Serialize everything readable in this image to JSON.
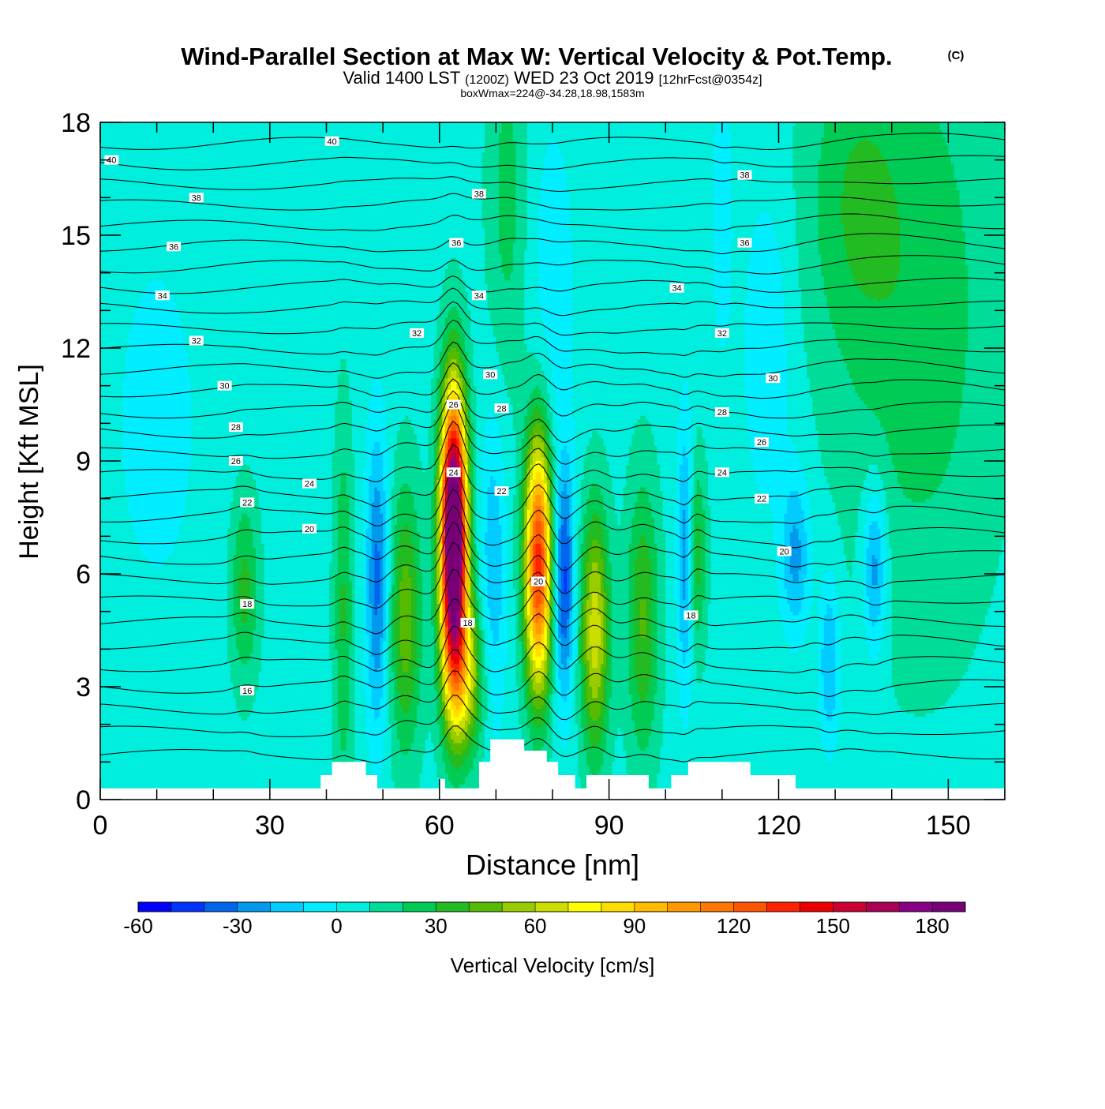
{
  "header": {
    "title": "Wind-Parallel Section at Max W: Vertical Velocity & Pot.Temp.",
    "copyright": "(C)",
    "valid_prefix": "Valid 1400 LST",
    "valid_utc": "(1200Z)",
    "valid_date": "WED 23 Oct 2019",
    "forecast": "[12hrFcst@0354z]",
    "box_info": "boxWmax=224@-34.28,18.98,1583m"
  },
  "chart_data": {
    "type": "heatmap",
    "xlabel": "Distance [nm]",
    "ylabel": "Height [Kft MSL]",
    "xlim": [
      0,
      160
    ],
    "ylim": [
      0,
      18
    ],
    "xticks": [
      "0",
      "30",
      "60",
      "90",
      "120",
      "150"
    ],
    "xtick_values": [
      0,
      30,
      60,
      90,
      120,
      150
    ],
    "yticks": [
      "0",
      "3",
      "6",
      "9",
      "12",
      "15",
      "18"
    ],
    "ytick_values": [
      0,
      3,
      6,
      9,
      12,
      15,
      18
    ],
    "terrain_kft": [
      {
        "x": 0,
        "h": 0.3
      },
      {
        "x": 39,
        "h": 0.3
      },
      {
        "x": 39,
        "h": 0.65
      },
      {
        "x": 41,
        "h": 0.65
      },
      {
        "x": 41,
        "h": 1.0
      },
      {
        "x": 47,
        "h": 1.0
      },
      {
        "x": 47,
        "h": 0.65
      },
      {
        "x": 49,
        "h": 0.65
      },
      {
        "x": 49,
        "h": 0.3
      },
      {
        "x": 60,
        "h": 0.3
      },
      {
        "x": 60,
        "h": 0.55
      },
      {
        "x": 61,
        "h": 0.55
      },
      {
        "x": 61,
        "h": 0.3
      },
      {
        "x": 67,
        "h": 0.3
      },
      {
        "x": 67,
        "h": 1.0
      },
      {
        "x": 69,
        "h": 1.0
      },
      {
        "x": 69,
        "h": 1.6
      },
      {
        "x": 75,
        "h": 1.6
      },
      {
        "x": 75,
        "h": 1.3
      },
      {
        "x": 79,
        "h": 1.3
      },
      {
        "x": 79,
        "h": 1.0
      },
      {
        "x": 81,
        "h": 1.0
      },
      {
        "x": 81,
        "h": 0.65
      },
      {
        "x": 84,
        "h": 0.65
      },
      {
        "x": 84,
        "h": 0.3
      },
      {
        "x": 86,
        "h": 0.3
      },
      {
        "x": 86,
        "h": 0.65
      },
      {
        "x": 97,
        "h": 0.65
      },
      {
        "x": 97,
        "h": 0.3
      },
      {
        "x": 101,
        "h": 0.3
      },
      {
        "x": 101,
        "h": 0.65
      },
      {
        "x": 104,
        "h": 0.65
      },
      {
        "x": 104,
        "h": 1.0
      },
      {
        "x": 115,
        "h": 1.0
      },
      {
        "x": 115,
        "h": 0.65
      },
      {
        "x": 123,
        "h": 0.65
      },
      {
        "x": 123,
        "h": 0.3
      },
      {
        "x": 160,
        "h": 0.3
      }
    ],
    "updrafts": [
      {
        "x": 62.5,
        "z": 7.0,
        "peak": 224,
        "wx": 1.6,
        "wz": 2.6
      },
      {
        "x": 77.5,
        "z": 6.3,
        "peak": 130,
        "wx": 1.7,
        "wz": 2.4
      },
      {
        "x": 87.5,
        "z": 4.5,
        "peak": 60,
        "wx": 1.8,
        "wz": 2.3
      },
      {
        "x": 54.0,
        "z": 4.8,
        "peak": 40,
        "wx": 2.0,
        "wz": 2.5
      },
      {
        "x": 96.0,
        "z": 4.8,
        "peak": 35,
        "wx": 2.0,
        "wz": 2.6
      },
      {
        "x": 64.5,
        "z": 3.3,
        "peak": 55,
        "wx": 2.4,
        "wz": 1.5
      },
      {
        "x": 25.5,
        "z": 5.6,
        "peak": 28,
        "wx": 1.8,
        "wz": 1.8
      },
      {
        "x": 105.5,
        "z": 6.5,
        "peak": 30,
        "wx": 1.2,
        "wz": 1.8
      },
      {
        "x": 43.0,
        "z": 5.0,
        "peak": 25,
        "wx": 1.2,
        "wz": 3.5
      },
      {
        "x": 145.0,
        "z": 13.0,
        "peak": 20,
        "wx": 10.0,
        "wz": 6.0
      },
      {
        "x": 133.0,
        "z": 16.0,
        "peak": 18,
        "wx": 6.0,
        "wz": 3.0
      },
      {
        "x": 72.0,
        "z": 16.0,
        "peak": 18,
        "wx": 2.5,
        "wz": 3.5
      }
    ],
    "downdrafts": [
      {
        "x": 49.0,
        "z": 5.8,
        "peak": -40,
        "wx": 1.4,
        "wz": 2.8
      },
      {
        "x": 82.0,
        "z": 5.8,
        "peak": -50,
        "wx": 1.3,
        "wz": 2.2
      },
      {
        "x": 69.5,
        "z": 6.0,
        "peak": -25,
        "wx": 1.6,
        "wz": 3.0
      },
      {
        "x": 103.5,
        "z": 6.5,
        "peak": -35,
        "wx": 1.0,
        "wz": 2.5
      },
      {
        "x": 123.0,
        "z": 6.5,
        "peak": -30,
        "wx": 1.8,
        "wz": 1.5
      },
      {
        "x": 137.0,
        "z": 6.2,
        "peak": -35,
        "wx": 1.5,
        "wz": 1.6
      },
      {
        "x": 129.0,
        "z": 3.7,
        "peak": -28,
        "wx": 1.3,
        "wz": 1.6
      },
      {
        "x": 118.0,
        "z": 12.0,
        "peak": -15,
        "wx": 3.0,
        "wz": 3.0
      },
      {
        "x": 80.0,
        "z": 13.5,
        "peak": -12,
        "wx": 3.0,
        "wz": 3.5
      },
      {
        "x": 110.0,
        "z": 15.5,
        "peak": -15,
        "wx": 1.2,
        "wz": 2.5
      },
      {
        "x": 10.0,
        "z": 10.0,
        "peak": -8,
        "wx": 8.0,
        "wz": 5.0
      }
    ],
    "theta_base": 12,
    "theta_step": 1,
    "theta_count": 30,
    "theta_labels": [
      {
        "text": "40",
        "x": 2.0,
        "z": 17.0
      },
      {
        "text": "40",
        "x": 41.0,
        "z": 17.5
      },
      {
        "text": "38",
        "x": 17.0,
        "z": 16.0
      },
      {
        "text": "38",
        "x": 67.0,
        "z": 16.1
      },
      {
        "text": "38",
        "x": 114.0,
        "z": 16.6
      },
      {
        "text": "36",
        "x": 13.0,
        "z": 14.7
      },
      {
        "text": "36",
        "x": 63.0,
        "z": 14.8
      },
      {
        "text": "36",
        "x": 114.0,
        "z": 14.8
      },
      {
        "text": "34",
        "x": 11.0,
        "z": 13.4
      },
      {
        "text": "34",
        "x": 67.0,
        "z": 13.4
      },
      {
        "text": "34",
        "x": 102.0,
        "z": 13.6
      },
      {
        "text": "32",
        "x": 17.0,
        "z": 12.2
      },
      {
        "text": "32",
        "x": 56.0,
        "z": 12.4
      },
      {
        "text": "32",
        "x": 110.0,
        "z": 12.4
      },
      {
        "text": "30",
        "x": 22.0,
        "z": 11.0
      },
      {
        "text": "30",
        "x": 69.0,
        "z": 11.3
      },
      {
        "text": "30",
        "x": 119.0,
        "z": 11.2
      },
      {
        "text": "28",
        "x": 24.0,
        "z": 9.9
      },
      {
        "text": "28",
        "x": 71.0,
        "z": 10.4
      },
      {
        "text": "28",
        "x": 110.0,
        "z": 10.3
      },
      {
        "text": "26",
        "x": 62.5,
        "z": 10.5
      },
      {
        "text": "26",
        "x": 24.0,
        "z": 9.0
      },
      {
        "text": "26",
        "x": 117.0,
        "z": 9.5
      },
      {
        "text": "24",
        "x": 37.0,
        "z": 8.4
      },
      {
        "text": "24",
        "x": 62.5,
        "z": 8.7
      },
      {
        "text": "24",
        "x": 110.0,
        "z": 8.7
      },
      {
        "text": "22",
        "x": 26.0,
        "z": 7.9
      },
      {
        "text": "22",
        "x": 71.0,
        "z": 8.2
      },
      {
        "text": "22",
        "x": 117.0,
        "z": 8.0
      },
      {
        "text": "20",
        "x": 37.0,
        "z": 7.2
      },
      {
        "text": "20",
        "x": 77.5,
        "z": 5.8
      },
      {
        "text": "20",
        "x": 121.0,
        "z": 6.6
      },
      {
        "text": "18",
        "x": 26.0,
        "z": 5.2
      },
      {
        "text": "18",
        "x": 65.0,
        "z": 4.7
      },
      {
        "text": "18",
        "x": 104.5,
        "z": 4.9
      },
      {
        "text": "16",
        "x": 26.0,
        "z": 2.9
      }
    ],
    "colorbar": {
      "label": "Vertical Velocity [cm/s]",
      "min": -60,
      "step": 10,
      "colors": [
        "#0000ff",
        "#0033ff",
        "#0066ee",
        "#0099ee",
        "#00ccff",
        "#00eeff",
        "#00eedd",
        "#00dd99",
        "#00cc55",
        "#22bb22",
        "#55bb00",
        "#99cc00",
        "#ccdd00",
        "#ffff00",
        "#ffdd00",
        "#ffbb00",
        "#ff9900",
        "#ff7700",
        "#ff5500",
        "#ff2200",
        "#ee0000",
        "#cc0033",
        "#aa0055",
        "#880088",
        "#770077"
      ],
      "tick_labels": [
        "-60",
        "-30",
        "0",
        "30",
        "60",
        "90",
        "120",
        "150",
        "180"
      ],
      "tick_values": [
        -60,
        -30,
        0,
        30,
        60,
        90,
        120,
        150,
        180
      ]
    }
  }
}
